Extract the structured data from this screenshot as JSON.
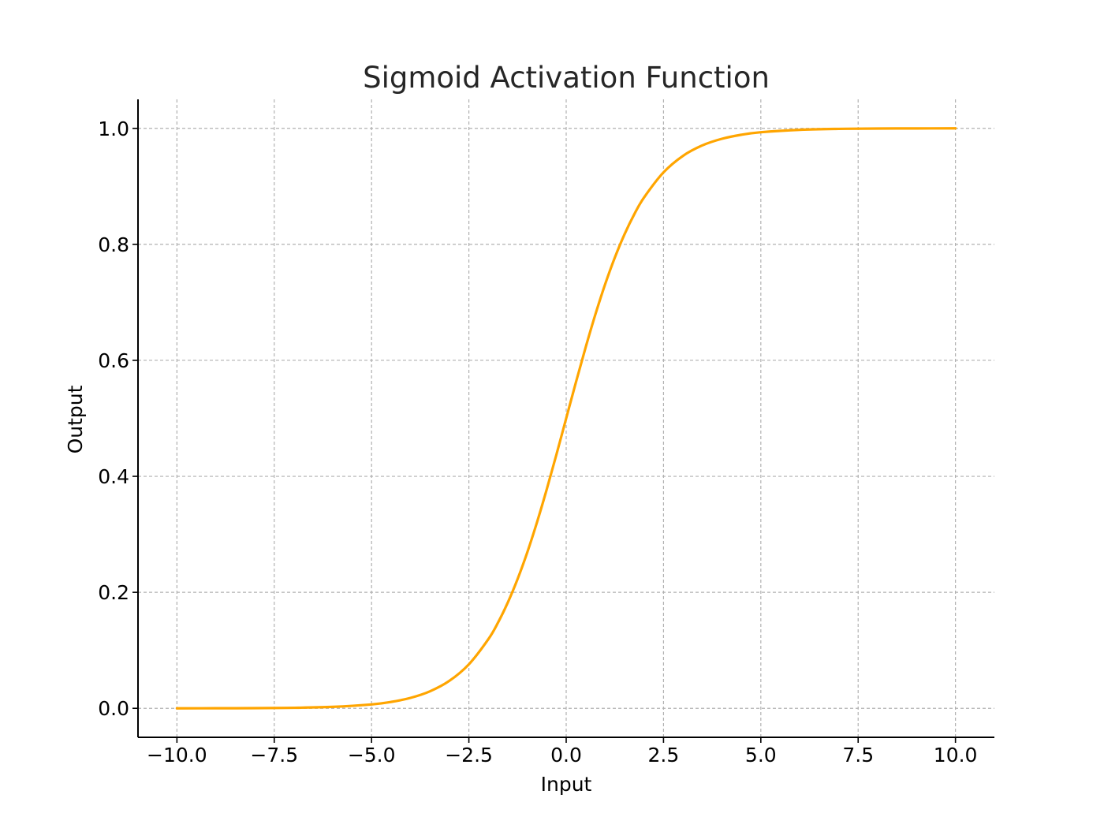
{
  "chart_data": {
    "type": "line",
    "title": "Sigmoid Activation Function",
    "xlabel": "Input",
    "ylabel": "Output",
    "xlim": [
      -11.0,
      11.0
    ],
    "ylim": [
      -0.05,
      1.05
    ],
    "x_ticks": [
      -10.0,
      -7.5,
      -5.0,
      -2.5,
      0.0,
      2.5,
      5.0,
      7.5,
      10.0
    ],
    "x_tick_labels": [
      "−10.0",
      "−7.5",
      "−5.0",
      "−2.5",
      "0.0",
      "2.5",
      "5.0",
      "7.5",
      "10.0"
    ],
    "y_ticks": [
      0.0,
      0.2,
      0.4,
      0.6,
      0.8,
      1.0
    ],
    "y_tick_labels": [
      "0.0",
      "0.2",
      "0.4",
      "0.6",
      "0.8",
      "1.0"
    ],
    "grid": true,
    "grid_style": "dashed",
    "spines": [
      "left",
      "bottom"
    ],
    "series": [
      {
        "color": "#FFA500",
        "x": [
          -10,
          -9,
          -8,
          -7,
          -6,
          -5,
          -4.5,
          -4,
          -3.5,
          -3,
          -2.5,
          -2,
          -1.75,
          -1.5,
          -1.25,
          -1,
          -0.75,
          -0.5,
          -0.25,
          0,
          0.25,
          0.5,
          0.75,
          1,
          1.25,
          1.5,
          1.75,
          2,
          2.5,
          3,
          3.5,
          4,
          4.5,
          5,
          6,
          7,
          8,
          9,
          10
        ],
        "y": [
          0.0,
          0.0001,
          0.0003,
          0.0009,
          0.0025,
          0.0067,
          0.011,
          0.018,
          0.0293,
          0.0474,
          0.0759,
          0.1192,
          0.148,
          0.1824,
          0.2227,
          0.2689,
          0.3208,
          0.3775,
          0.4378,
          0.5,
          0.5622,
          0.6225,
          0.6792,
          0.7311,
          0.7773,
          0.8176,
          0.852,
          0.8808,
          0.9241,
          0.9526,
          0.9707,
          0.982,
          0.989,
          0.9933,
          0.9975,
          0.9991,
          0.9997,
          0.9999,
          1.0
        ]
      }
    ]
  }
}
